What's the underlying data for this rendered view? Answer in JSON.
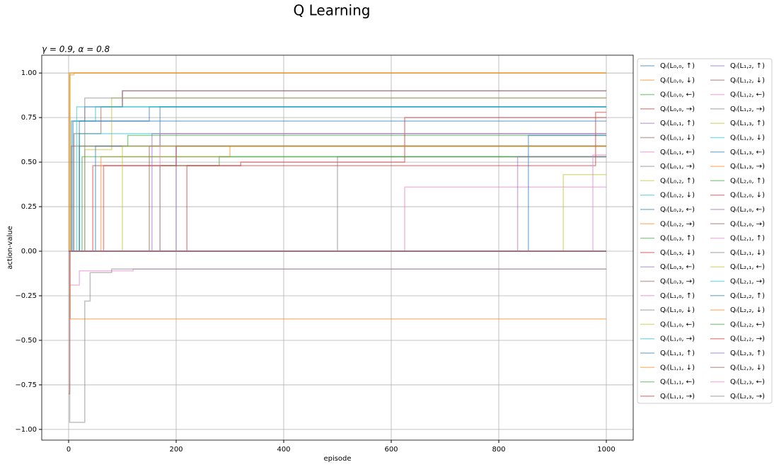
{
  "chart_data": {
    "type": "line",
    "title": "Q Learning",
    "subtitle": "γ = 0.9, α = 0.8",
    "xlabel": "episode",
    "ylabel": "action-value",
    "xlim": [
      -50,
      1050
    ],
    "ylim": [
      -1.06,
      1.1
    ],
    "xticks": [
      0,
      200,
      400,
      600,
      800,
      1000
    ],
    "yticks": [
      {
        "value": -1,
        "label": "−1.00"
      },
      {
        "value": -0.75,
        "label": "−0.75"
      },
      {
        "value": -0.5,
        "label": "−0.50"
      },
      {
        "value": -0.25,
        "label": "−0.25"
      },
      {
        "value": 0,
        "label": "0.00"
      },
      {
        "value": 0.25,
        "label": "0.25"
      },
      {
        "value": 0.5,
        "label": "0.50"
      },
      {
        "value": 0.75,
        "label": "0.75"
      },
      {
        "value": 1,
        "label": "1.00"
      }
    ],
    "grid": true,
    "legend": "outside right",
    "drawstyle": "steps-post",
    "series": [
      {
        "name": "Qᵢ(L₀,₀, ↑)",
        "color": "#1f77b4",
        "x": [
          0,
          5,
          150,
          1000
        ],
        "values": [
          0,
          0.73,
          0.81,
          0.81
        ]
      },
      {
        "name": "Qᵢ(L₀,₀, ↓)",
        "color": "#ff7f0e",
        "x": [
          0,
          3,
          1000
        ],
        "values": [
          0,
          -0.38,
          -0.38
        ]
      },
      {
        "name": "Qᵢ(L₀,₀, ←)",
        "color": "#2ca02c",
        "x": [
          0,
          20,
          110,
          1000
        ],
        "values": [
          0,
          0.59,
          0.65,
          0.65
        ]
      },
      {
        "name": "Qᵢ(L₀,₀, →)",
        "color": "#d62728",
        "x": [
          0,
          2,
          45,
          200,
          1000
        ],
        "values": [
          -0.8,
          0,
          0.48,
          0.59,
          0.59
        ]
      },
      {
        "name": "Qᵢ(L₀,₁, ↑)",
        "color": "#9467bd",
        "x": [
          0,
          8,
          30,
          100,
          1000
        ],
        "values": [
          0,
          0.73,
          0.81,
          0.9,
          0.9
        ]
      },
      {
        "name": "Qᵢ(L₀,₁, ↓)",
        "color": "#8c564b",
        "x": [
          0,
          10,
          60,
          100,
          1000
        ],
        "values": [
          0,
          0.66,
          0.81,
          0.9,
          0.9
        ]
      },
      {
        "name": "Qᵢ(L₀,₁, ←)",
        "color": "#e377c2",
        "x": [
          0,
          2,
          20,
          120,
          1000
        ],
        "values": [
          0,
          -0.19,
          -0.11,
          -0.1,
          -0.1
        ]
      },
      {
        "name": "Qᵢ(L₀,₁, →)",
        "color": "#7f7f7f",
        "x": [
          0,
          2,
          30,
          40,
          80,
          1000
        ],
        "values": [
          0,
          -0.96,
          -0.28,
          -0.12,
          -0.1,
          -0.1
        ]
      },
      {
        "name": "Qᵢ(L₀,₂, ↑)",
        "color": "#bcbd22",
        "x": [
          0,
          30,
          80,
          1000
        ],
        "values": [
          0,
          0.57,
          0.86,
          0.86
        ]
      },
      {
        "name": "Qᵢ(L₀,₂, ↓)",
        "color": "#17becf",
        "x": [
          0,
          8,
          50,
          1000
        ],
        "values": [
          0,
          0.73,
          0.81,
          0.81
        ]
      },
      {
        "name": "Qᵢ(L₀,₂, ←)",
        "color": "#1f77b4",
        "x": [
          0,
          50,
          170,
          1000
        ],
        "values": [
          0,
          0.59,
          0.81,
          0.81
        ]
      },
      {
        "name": "Qᵢ(L₀,₂, →)",
        "color": "#ff7f0e",
        "x": [
          0,
          2,
          10,
          1000
        ],
        "values": [
          0,
          0.99,
          1.0,
          1.0
        ]
      },
      {
        "name": "Qᵢ(L₀,₃, ↑)",
        "color": "#2ca02c",
        "x": [
          0,
          170,
          280,
          1000
        ],
        "values": [
          0,
          0.48,
          0.53,
          0.53
        ]
      },
      {
        "name": "Qᵢ(L₀,₃, ↓)",
        "color": "#d62728",
        "x": [
          0,
          220,
          320,
          625,
          1000
        ],
        "values": [
          0,
          0.48,
          0.5,
          0.75,
          0.75
        ]
      },
      {
        "name": "Qᵢ(L₀,₃, ←)",
        "color": "#9467bd",
        "x": [
          0,
          200,
          1000
        ],
        "values": [
          0,
          0.59,
          0.59
        ]
      },
      {
        "name": "Qᵢ(L₀,₃, →)",
        "color": "#8c564b",
        "x": [
          0,
          150,
          1000
        ],
        "values": [
          0,
          0.59,
          0.59
        ]
      },
      {
        "name": "Qᵢ(L₁,₀, ↑)",
        "color": "#e377c2",
        "x": [
          0,
          625,
          1000
        ],
        "values": [
          0,
          0.36,
          0.36
        ]
      },
      {
        "name": "Qᵢ(L₁,₀, ↓)",
        "color": "#7f7f7f",
        "x": [
          0,
          500,
          1000
        ],
        "values": [
          0,
          0.53,
          0.53
        ]
      },
      {
        "name": "Qᵢ(L₁,₀, ←)",
        "color": "#bcbd22",
        "x": [
          0,
          920,
          1000
        ],
        "values": [
          0,
          0.43,
          0.43
        ]
      },
      {
        "name": "Qᵢ(L₁,₀, →)",
        "color": "#17becf",
        "x": [
          0,
          20,
          1000
        ],
        "values": [
          0,
          0.66,
          0.66
        ]
      },
      {
        "name": "Qᵢ(L₁,₁, ↑)",
        "color": "#1f77b4",
        "x": [
          0,
          855,
          1000
        ],
        "values": [
          0,
          0.65,
          0.65
        ]
      },
      {
        "name": "Qᵢ(L₁,₁, ↓)",
        "color": "#ff7f0e",
        "x": [
          0,
          60,
          300,
          1000
        ],
        "values": [
          0,
          0.53,
          0.59,
          0.59
        ]
      },
      {
        "name": "Qᵢ(L₁,₁, ←)",
        "color": "#2ca02c",
        "x": [
          0,
          25,
          1000
        ],
        "values": [
          0,
          0.53,
          0.53
        ]
      },
      {
        "name": "Qᵢ(L₁,₁, →)",
        "color": "#d62728",
        "x": [
          0,
          65,
          980,
          1000
        ],
        "values": [
          0,
          0.48,
          0.78,
          0.78
        ]
      },
      {
        "name": "Qᵢ(L₁,₂, ↑)",
        "color": "#9467bd",
        "x": [
          0,
          835,
          1000
        ],
        "values": [
          0,
          0.53,
          0.53
        ]
      },
      {
        "name": "Qᵢ(L₁,₂, ↓)",
        "color": "#8c564b",
        "x": [
          0,
          5,
          1000
        ],
        "values": [
          0,
          0.59,
          0.59
        ]
      },
      {
        "name": "Qᵢ(L₁,₂, ←)",
        "color": "#e377c2",
        "x": [
          0,
          975,
          1000
        ],
        "values": [
          0,
          0.54,
          0.54
        ]
      },
      {
        "name": "Qᵢ(L₁,₂, →)",
        "color": "#7f7f7f",
        "x": [
          0,
          30,
          1000
        ],
        "values": [
          0,
          0.86,
          0.86
        ]
      },
      {
        "name": "Qᵢ(L₁,₃, ↑)",
        "color": "#bcbd22",
        "x": [
          0,
          3,
          1000
        ],
        "values": [
          0,
          1.0,
          1.0
        ]
      },
      {
        "name": "Qᵢ(L₁,₃, ↓)",
        "color": "#17becf",
        "x": [
          0,
          15,
          1000
        ],
        "values": [
          0,
          0.81,
          0.81
        ]
      },
      {
        "name": "Qᵢ(L₁,₃, ←)",
        "color": "#1f77b4",
        "x": [
          0,
          20,
          1000
        ],
        "values": [
          0,
          0.73,
          0.73
        ]
      },
      {
        "name": "Qᵢ(L₁,₃, →)",
        "color": "#ff7f0e",
        "x": [
          0,
          1,
          1000
        ],
        "values": [
          0,
          1.0,
          1.0
        ]
      },
      {
        "name": "Qᵢ(L₂,₀, ↑)",
        "color": "#2ca02c",
        "x": [
          0,
          1000
        ],
        "values": [
          0,
          0
        ]
      },
      {
        "name": "Qᵢ(L₂,₀, ↓)",
        "color": "#d62728",
        "x": [
          0,
          1000
        ],
        "values": [
          0,
          0
        ]
      },
      {
        "name": "Qᵢ(L₂,₀, ←)",
        "color": "#9467bd",
        "x": [
          0,
          155,
          1000
        ],
        "values": [
          0,
          0.66,
          0.66
        ]
      },
      {
        "name": "Qᵢ(L₂,₀, →)",
        "color": "#8c564b",
        "x": [
          0,
          1000
        ],
        "values": [
          0,
          0
        ]
      },
      {
        "name": "Qᵢ(L₂,₁, ↑)",
        "color": "#e377c2",
        "x": [
          0,
          170,
          1000
        ],
        "values": [
          0,
          0.66,
          0.66
        ]
      },
      {
        "name": "Qᵢ(L₂,₁, ↓)",
        "color": "#7f7f7f",
        "x": [
          0,
          1000
        ],
        "values": [
          0,
          0
        ]
      },
      {
        "name": "Qᵢ(L₂,₁, ←)",
        "color": "#bcbd22",
        "x": [
          0,
          100,
          1000
        ],
        "values": [
          0,
          0.59,
          0.59
        ]
      },
      {
        "name": "Qᵢ(L₂,₁, →)",
        "color": "#17becf",
        "x": [
          0,
          1000
        ],
        "values": [
          0,
          0
        ]
      },
      {
        "name": "Qᵢ(L₂,₂, ↑)",
        "color": "#1f77b4",
        "x": [
          0,
          1000
        ],
        "values": [
          0,
          0
        ]
      },
      {
        "name": "Qᵢ(L₂,₂, ↓)",
        "color": "#ff7f0e",
        "x": [
          0,
          1000
        ],
        "values": [
          0,
          0
        ]
      },
      {
        "name": "Qᵢ(L₂,₂, ←)",
        "color": "#2ca02c",
        "x": [
          0,
          1000
        ],
        "values": [
          0,
          0
        ]
      },
      {
        "name": "Qᵢ(L₂,₂, →)",
        "color": "#d62728",
        "x": [
          0,
          1000
        ],
        "values": [
          0,
          0
        ]
      },
      {
        "name": "Qᵢ(L₂,₃, ↑)",
        "color": "#9467bd",
        "x": [
          0,
          1000
        ],
        "values": [
          0,
          0
        ]
      },
      {
        "name": "Qᵢ(L₂,₃, ↓)",
        "color": "#8c564b",
        "x": [
          0,
          1000
        ],
        "values": [
          0,
          0
        ]
      },
      {
        "name": "Qᵢ(L₂,₃, ←)",
        "color": "#e377c2",
        "x": [
          0,
          1000
        ],
        "values": [
          0,
          0
        ]
      },
      {
        "name": "Qᵢ(L₂,₃, →)",
        "color": "#7f7f7f",
        "x": [
          0,
          1000
        ],
        "values": [
          0,
          0
        ]
      }
    ]
  }
}
